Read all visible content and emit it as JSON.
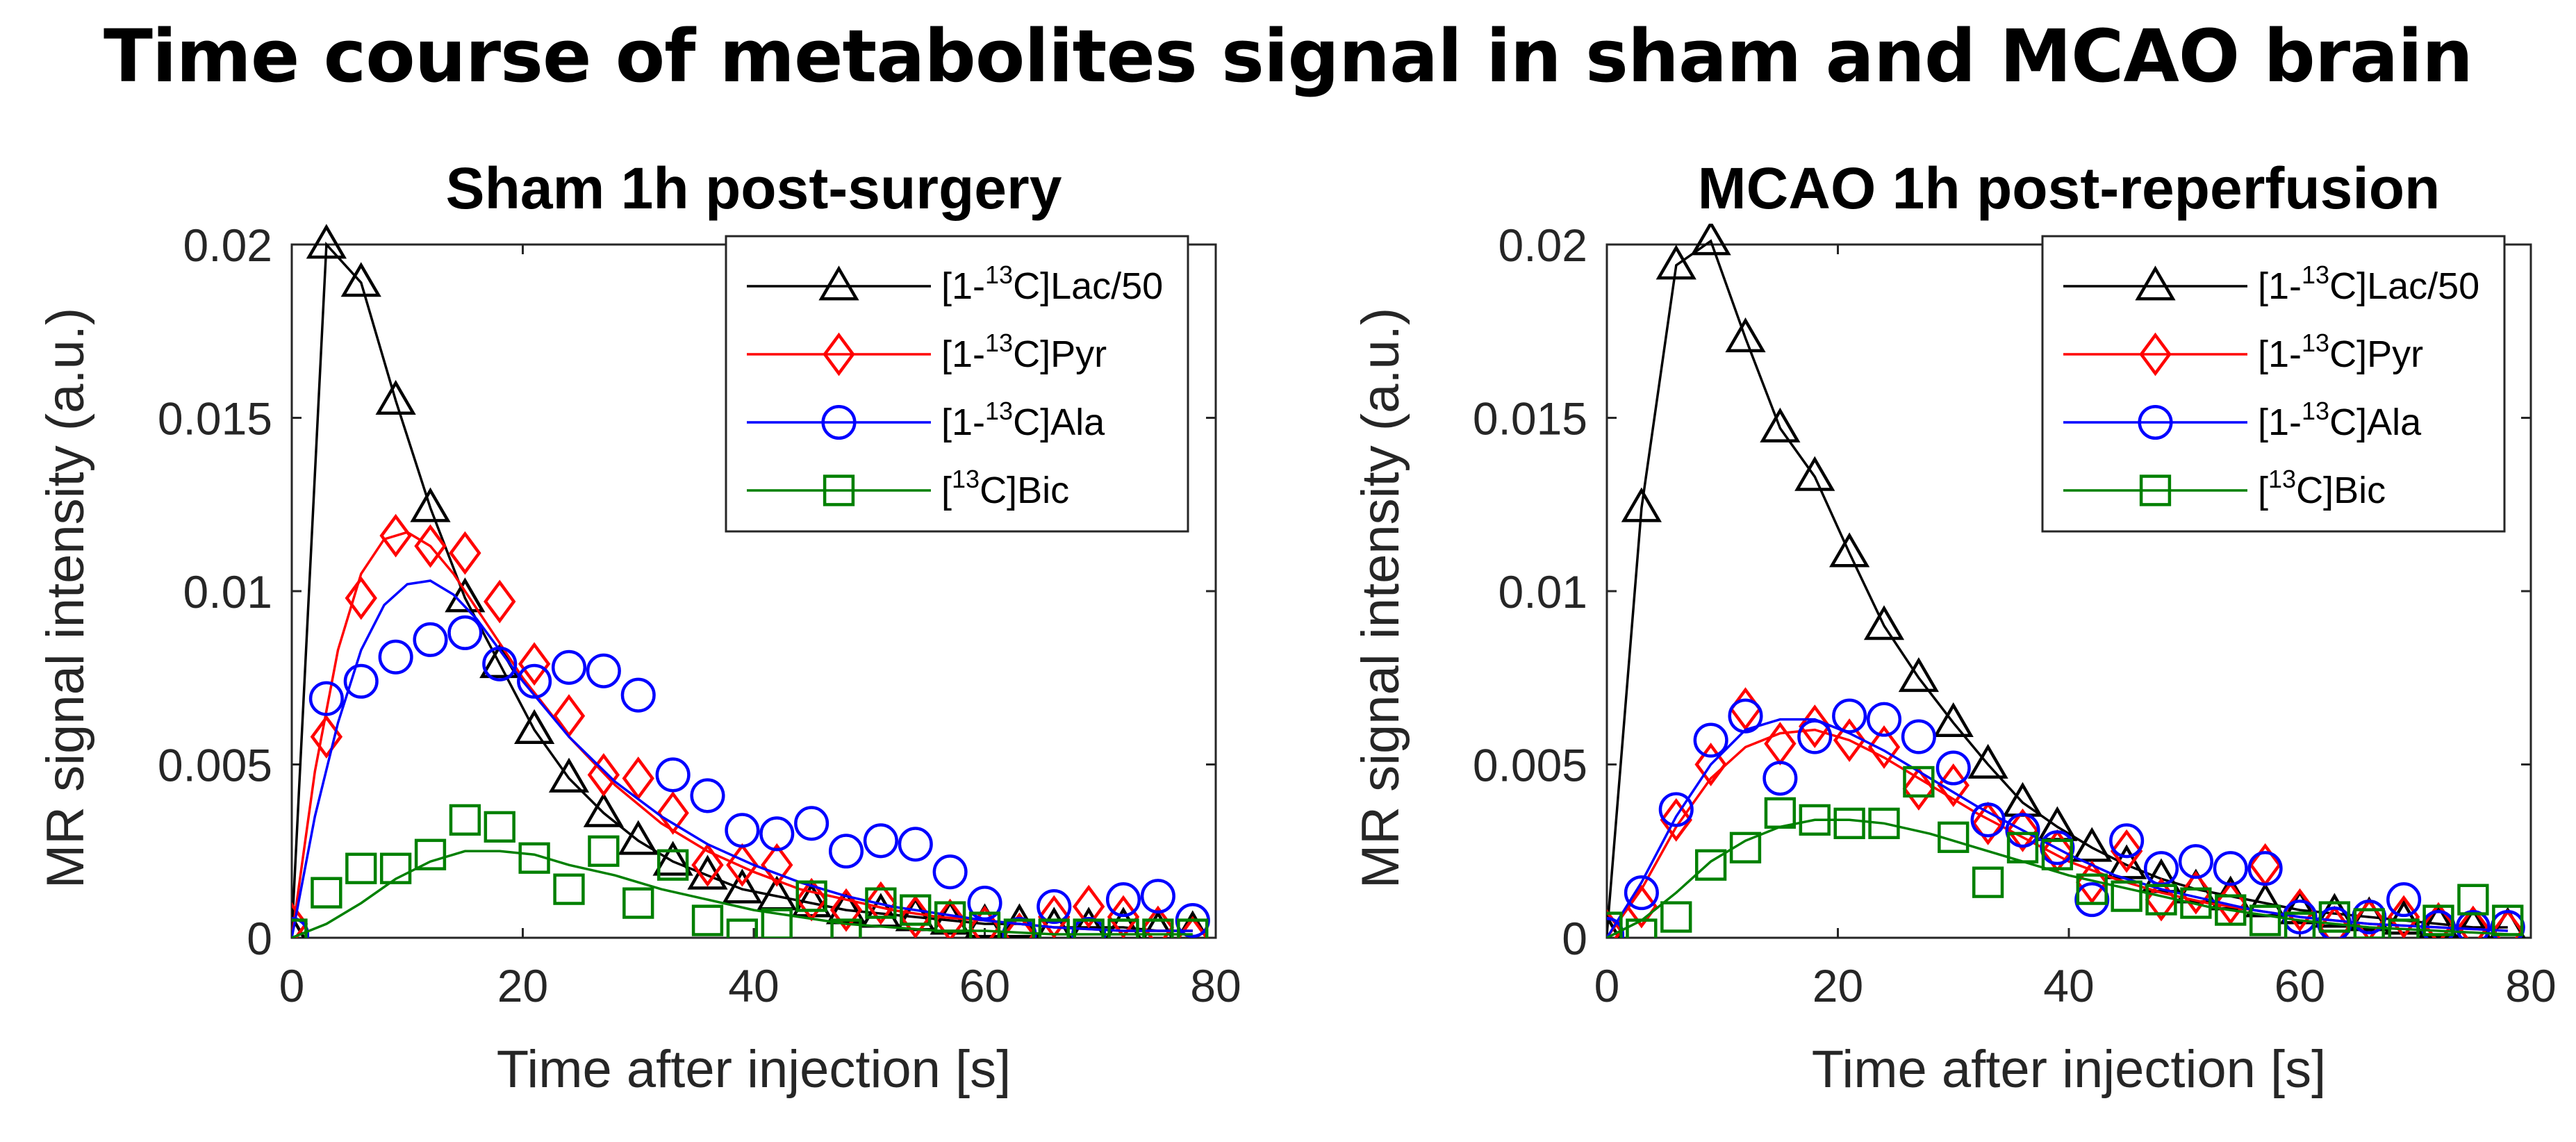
{
  "title": "Time course of metabolites signal in sham and MCAO brain",
  "colors": {
    "Lac": "#000000",
    "Pyr": "#ff0000",
    "Ala": "#0000ff",
    "Bic": "#008000",
    "axis": "#262626"
  },
  "legend_entries": [
    {
      "key": "Lac",
      "pre": "[1-",
      "sup": "13",
      "post": "C]Lac/50",
      "marker": "triangle"
    },
    {
      "key": "Pyr",
      "pre": "[1-",
      "sup": "13",
      "post": "C]Pyr",
      "marker": "diamond"
    },
    {
      "key": "Ala",
      "pre": "[1-",
      "sup": "13",
      "post": "C]Ala",
      "marker": "circle"
    },
    {
      "key": "Bic",
      "pre": "[",
      "sup": "13",
      "post": "C]Bic",
      "marker": "square"
    }
  ],
  "chart_data": [
    {
      "type": "scatter",
      "title": "Sham 1h post-surgery",
      "xlabel": "Time after injection [s]",
      "ylabel": "MR signal intensity (a.u.)",
      "xlim": [
        0,
        80
      ],
      "ylim": [
        0,
        0.02
      ],
      "xticks": [
        0,
        20,
        40,
        60,
        80
      ],
      "yticks": [
        0,
        0.005,
        0.01,
        0.015,
        0.02
      ],
      "ytick_labels": [
        "0",
        "0.005",
        "0.01",
        "0.015",
        "0.02"
      ],
      "legend": "top-right",
      "series": [
        {
          "name": "[1-13C]Lac/50",
          "key": "Lac",
          "marker": "triangle",
          "x": [
            0,
            3,
            6,
            9,
            12,
            15,
            18,
            21,
            24,
            27,
            30,
            33,
            36,
            39,
            42,
            45,
            48,
            51,
            54,
            57,
            60,
            63,
            66,
            69,
            72,
            75,
            78
          ],
          "y": [
            0.0001,
            0.02,
            0.0189,
            0.0155,
            0.0124,
            0.0098,
            0.0079,
            0.006,
            0.0046,
            0.0036,
            0.0028,
            0.0022,
            0.0018,
            0.0014,
            0.0012,
            0.001,
            0.0008,
            0.0007,
            0.0006,
            0.0005,
            0.0004,
            0.0004,
            0.0003,
            0.0003,
            0.0003,
            0.0002,
            0.0002
          ],
          "fit_x": [
            0,
            3,
            6,
            9,
            12,
            15,
            18,
            21,
            24,
            27,
            30,
            33,
            36,
            39,
            42,
            45,
            48,
            51,
            54,
            57,
            60,
            63,
            66,
            69,
            72,
            75,
            78
          ],
          "fit_y": [
            0.0001,
            0.02,
            0.0189,
            0.0155,
            0.0124,
            0.0098,
            0.0079,
            0.006,
            0.0046,
            0.0036,
            0.0028,
            0.0022,
            0.0018,
            0.0014,
            0.0012,
            0.001,
            0.0008,
            0.0007,
            0.0006,
            0.0005,
            0.0004,
            0.0004,
            0.0003,
            0.0003,
            0.0003,
            0.0002,
            0.0002
          ]
        },
        {
          "name": "[1-13C]Pyr",
          "key": "Pyr",
          "marker": "diamond",
          "x": [
            0,
            3,
            6,
            9,
            12,
            15,
            18,
            21,
            24,
            27,
            30,
            33,
            36,
            39,
            42,
            45,
            48,
            51,
            54,
            57,
            60,
            63,
            66,
            69,
            72,
            75,
            78
          ],
          "y": [
            0.0004,
            0.0058,
            0.0098,
            0.0116,
            0.0113,
            0.0111,
            0.0097,
            0.0079,
            0.0064,
            0.0047,
            0.0046,
            0.0036,
            0.0021,
            0.0021,
            0.0021,
            0.0011,
            0.0008,
            0.001,
            0.0006,
            0.0005,
            0.0003,
            0.0001,
            0.0006,
            0.0009,
            0.0006,
            0.0003,
            0.0
          ],
          "fit_x": [
            0,
            2,
            4,
            6,
            8,
            10,
            12,
            14,
            16,
            18,
            20,
            24,
            28,
            32,
            36,
            40,
            44,
            48,
            52,
            56,
            60,
            66,
            72,
            78
          ],
          "fit_y": [
            0,
            0.0048,
            0.0083,
            0.0105,
            0.0115,
            0.0117,
            0.0113,
            0.0105,
            0.0095,
            0.0085,
            0.0075,
            0.0058,
            0.0044,
            0.0033,
            0.0025,
            0.0019,
            0.0014,
            0.0011,
            0.0008,
            0.0006,
            0.0005,
            0.0003,
            0.0002,
            0.0002
          ]
        },
        {
          "name": "[1-13C]Ala",
          "key": "Ala",
          "marker": "circle",
          "x": [
            0,
            3,
            6,
            9,
            12,
            15,
            18,
            21,
            24,
            27,
            30,
            33,
            36,
            39,
            42,
            45,
            48,
            51,
            54,
            57,
            60,
            63,
            66,
            69,
            72,
            75,
            78
          ],
          "y": [
            0.0001,
            0.0069,
            0.0074,
            0.0081,
            0.0086,
            0.0088,
            0.0079,
            0.0074,
            0.0078,
            0.0077,
            0.007,
            0.0047,
            0.0041,
            0.0031,
            0.003,
            0.0033,
            0.0025,
            0.0028,
            0.0027,
            0.0019,
            0.001,
            0.0001,
            0.0009,
            0.0001,
            0.0011,
            0.0012,
            0.0005
          ],
          "fit_x": [
            0,
            2,
            4,
            6,
            8,
            10,
            12,
            14,
            16,
            18,
            20,
            24,
            28,
            32,
            36,
            40,
            44,
            48,
            52,
            56,
            60,
            66,
            72,
            78
          ],
          "fit_y": [
            0,
            0.0035,
            0.0062,
            0.0083,
            0.0096,
            0.0102,
            0.0103,
            0.0099,
            0.0092,
            0.0083,
            0.0074,
            0.0058,
            0.0045,
            0.0035,
            0.0027,
            0.0021,
            0.0016,
            0.0012,
            0.0009,
            0.0007,
            0.0005,
            0.0003,
            0.0002,
            0.0002
          ]
        },
        {
          "name": "[13C]Bic",
          "key": "Bic",
          "marker": "square",
          "x": [
            0,
            3,
            6,
            9,
            12,
            15,
            18,
            21,
            24,
            27,
            30,
            33,
            36,
            39,
            42,
            45,
            48,
            51,
            54,
            57,
            60,
            63,
            66,
            69,
            72,
            75,
            78
          ],
          "y": [
            0.0001,
            0.0013,
            0.002,
            0.002,
            0.0024,
            0.0034,
            0.0032,
            0.0023,
            0.0014,
            0.0025,
            0.001,
            0.0021,
            0.0005,
            0.0001,
            0.0004,
            0.0012,
            0.0001,
            0.001,
            0.0008,
            0.0006,
            0.0003,
            0.0001,
            0.0001,
            0.0001,
            0.0001,
            0.0001,
            0.0001
          ],
          "fit_x": [
            0,
            3,
            6,
            9,
            12,
            15,
            18,
            21,
            24,
            28,
            32,
            36,
            40,
            44,
            48,
            52,
            56,
            60,
            66,
            72,
            78
          ],
          "fit_y": [
            0,
            0.0004,
            0.001,
            0.0017,
            0.0022,
            0.0025,
            0.0025,
            0.0024,
            0.0021,
            0.0018,
            0.0014,
            0.0011,
            0.0008,
            0.0006,
            0.0004,
            0.0003,
            0.0002,
            0.0002,
            0.0001,
            0.0001,
            0.0001
          ]
        }
      ]
    },
    {
      "type": "scatter",
      "title": "MCAO 1h post-reperfusion",
      "xlabel": "Time after injection [s]",
      "ylabel": "MR signal intensity (a.u.)",
      "xlim": [
        0,
        80
      ],
      "ylim": [
        0,
        0.02
      ],
      "xticks": [
        0,
        20,
        40,
        60,
        80
      ],
      "yticks": [
        0,
        0.005,
        0.01,
        0.015,
        0.02
      ],
      "ytick_labels": [
        "0",
        "0.005",
        "0.01",
        "0.015",
        "0.02"
      ],
      "legend": "top-right",
      "series": [
        {
          "name": "[1-13C]Lac/50",
          "key": "Lac",
          "marker": "triangle",
          "x": [
            0,
            3,
            6,
            9,
            12,
            15,
            18,
            21,
            24,
            27,
            30,
            33,
            36,
            39,
            42,
            45,
            48,
            51,
            54,
            57,
            60,
            63,
            66,
            69,
            72,
            75,
            78
          ],
          "y": [
            0.0001,
            0.0124,
            0.0194,
            0.0201,
            0.0173,
            0.0147,
            0.0133,
            0.0111,
            0.009,
            0.0075,
            0.0062,
            0.005,
            0.0039,
            0.0032,
            0.0026,
            0.0021,
            0.0017,
            0.0014,
            0.0012,
            0.001,
            0.0008,
            0.0007,
            0.0006,
            0.0005,
            0.0004,
            0.0003,
            0.0003
          ],
          "fit_x": [
            0,
            3,
            6,
            9,
            12,
            15,
            18,
            21,
            24,
            27,
            30,
            33,
            36,
            39,
            42,
            45,
            48,
            51,
            54,
            57,
            60,
            63,
            66,
            69,
            72,
            75,
            78
          ],
          "fit_y": [
            0.0001,
            0.0124,
            0.0194,
            0.0201,
            0.0173,
            0.0147,
            0.0133,
            0.0111,
            0.009,
            0.0075,
            0.0062,
            0.005,
            0.0039,
            0.0032,
            0.0026,
            0.0021,
            0.0017,
            0.0014,
            0.0012,
            0.001,
            0.0008,
            0.0007,
            0.0006,
            0.0005,
            0.0004,
            0.0003,
            0.0003
          ]
        },
        {
          "name": "[1-13C]Pyr",
          "key": "Pyr",
          "marker": "diamond",
          "x": [
            0,
            3,
            6,
            9,
            12,
            15,
            18,
            21,
            24,
            27,
            30,
            33,
            36,
            39,
            42,
            45,
            48,
            51,
            54,
            57,
            60,
            63,
            66,
            69,
            72,
            75,
            78
          ],
          "y": [
            0.0002,
            0.0009,
            0.0034,
            0.005,
            0.0066,
            0.0056,
            0.0061,
            0.0057,
            0.0055,
            0.0043,
            0.0044,
            0.0033,
            0.0031,
            0.0025,
            0.0016,
            0.0025,
            0.0011,
            0.0013,
            0.001,
            0.0021,
            0.0008,
            0.0003,
            0.0005,
            0.0006,
            0.0004,
            0.0003,
            0.0002
          ],
          "fit_x": [
            0,
            3,
            6,
            9,
            12,
            15,
            18,
            21,
            24,
            28,
            32,
            36,
            40,
            44,
            48,
            52,
            56,
            60,
            66,
            72,
            78
          ],
          "fit_y": [
            0,
            0.0014,
            0.0032,
            0.0046,
            0.0055,
            0.0059,
            0.006,
            0.0057,
            0.0052,
            0.0044,
            0.0036,
            0.0029,
            0.0022,
            0.0017,
            0.0013,
            0.001,
            0.0008,
            0.0006,
            0.0004,
            0.0003,
            0.0002
          ]
        },
        {
          "name": "[1-13C]Ala",
          "key": "Ala",
          "marker": "circle",
          "x": [
            0,
            3,
            6,
            9,
            12,
            15,
            18,
            21,
            24,
            27,
            30,
            33,
            36,
            39,
            42,
            45,
            48,
            51,
            54,
            57,
            60,
            63,
            66,
            69,
            72,
            75,
            78
          ],
          "y": [
            0.0001,
            0.0013,
            0.0037,
            0.0057,
            0.0064,
            0.0046,
            0.0058,
            0.0064,
            0.0063,
            0.0058,
            0.0049,
            0.0034,
            0.0031,
            0.0026,
            0.0011,
            0.0028,
            0.002,
            0.0022,
            0.002,
            0.002,
            0.0006,
            0.0004,
            0.0006,
            0.0011,
            0.0003,
            0.0003,
            0.0003
          ],
          "fit_x": [
            0,
            3,
            6,
            9,
            12,
            15,
            18,
            21,
            24,
            28,
            32,
            36,
            40,
            44,
            48,
            52,
            56,
            60,
            66,
            72,
            78
          ],
          "fit_y": [
            0,
            0.0016,
            0.0035,
            0.005,
            0.006,
            0.0063,
            0.0063,
            0.0059,
            0.0054,
            0.0046,
            0.0038,
            0.0031,
            0.0024,
            0.0018,
            0.0014,
            0.0011,
            0.0008,
            0.0006,
            0.0004,
            0.0003,
            0.0002
          ]
        },
        {
          "name": "[13C]Bic",
          "key": "Bic",
          "marker": "square",
          "x": [
            0,
            3,
            6,
            9,
            12,
            15,
            18,
            21,
            24,
            27,
            30,
            33,
            36,
            39,
            42,
            45,
            48,
            51,
            54,
            57,
            60,
            63,
            66,
            69,
            72,
            75,
            78
          ],
          "y": [
            0.0003,
            0.0001,
            0.0006,
            0.0021,
            0.0026,
            0.0036,
            0.0034,
            0.0033,
            0.0033,
            0.0045,
            0.0029,
            0.0016,
            0.0026,
            0.0024,
            0.0014,
            0.0012,
            0.0011,
            0.001,
            0.0008,
            0.0005,
            0.0003,
            0.0006,
            0.0004,
            0.0001,
            0.0005,
            0.0011,
            0.0005
          ],
          "fit_x": [
            0,
            3,
            6,
            9,
            12,
            15,
            18,
            21,
            24,
            28,
            32,
            36,
            40,
            44,
            48,
            52,
            56,
            60,
            66,
            72,
            78
          ],
          "fit_y": [
            0,
            0.0005,
            0.0013,
            0.0022,
            0.0028,
            0.0032,
            0.0034,
            0.0034,
            0.0033,
            0.003,
            0.0026,
            0.0022,
            0.0018,
            0.0015,
            0.0012,
            0.0009,
            0.0007,
            0.0005,
            0.0003,
            0.0002,
            0.0001
          ]
        }
      ]
    }
  ]
}
